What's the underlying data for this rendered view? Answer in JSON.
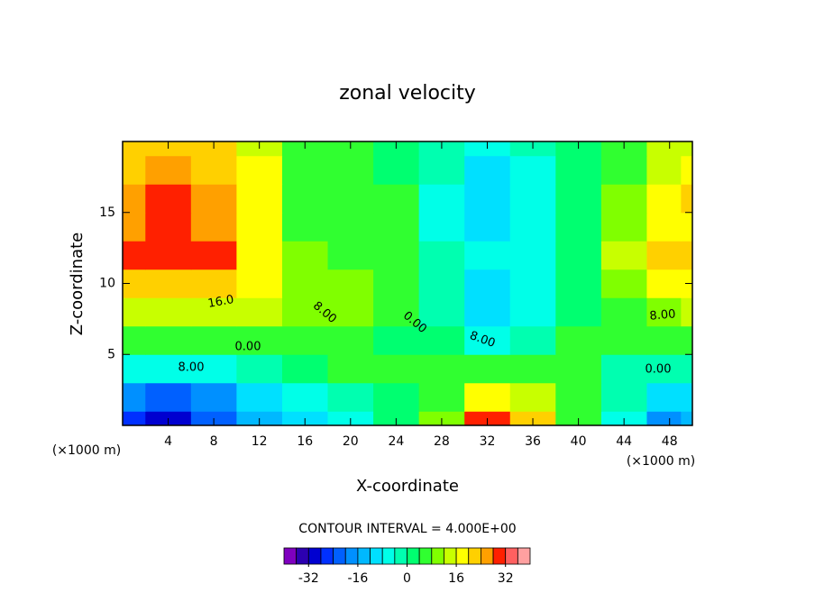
{
  "chart_data": {
    "type": "contour",
    "title": "zonal velocity",
    "xlabel": "X-coordinate",
    "ylabel": "Z-coordinate",
    "x_unit_label": "(×1000 m)",
    "y_unit_label": "(×1000 m)",
    "contour_interval_text": "CONTOUR INTERVAL = 4.000E+00",
    "xlim": [
      0,
      50
    ],
    "ylim": [
      0,
      20
    ],
    "xticks": [
      4,
      8,
      12,
      16,
      20,
      24,
      28,
      32,
      36,
      40,
      44,
      48
    ],
    "yticks": [
      5,
      10,
      15
    ],
    "x": [
      0,
      4,
      8,
      12,
      16,
      20,
      24,
      28,
      32,
      36,
      40,
      44,
      48,
      50
    ],
    "y": [
      0,
      2,
      4,
      6,
      8,
      10,
      12,
      14,
      16,
      18,
      20
    ],
    "z": [
      [
        -28,
        -30,
        -24,
        -14,
        -10,
        -8,
        0,
        8,
        30,
        22,
        4,
        -6,
        -20,
        -16
      ],
      [
        -20,
        -22,
        -18,
        -10,
        -6,
        -2,
        2,
        6,
        16,
        14,
        4,
        -4,
        -12,
        -10
      ],
      [
        -6,
        -8,
        -6,
        -4,
        2,
        4,
        4,
        4,
        4,
        6,
        4,
        -2,
        -4,
        -2
      ],
      [
        6,
        6,
        4,
        4,
        6,
        6,
        2,
        0,
        -6,
        -2,
        4,
        4,
        4,
        6
      ],
      [
        14,
        14,
        12,
        12,
        8,
        8,
        4,
        -2,
        -10,
        -6,
        2,
        6,
        10,
        12
      ],
      [
        20,
        22,
        20,
        16,
        10,
        8,
        6,
        -4,
        -10,
        -8,
        2,
        10,
        16,
        18
      ],
      [
        28,
        30,
        28,
        18,
        8,
        6,
        4,
        -4,
        -8,
        -8,
        2,
        12,
        20,
        22
      ],
      [
        26,
        28,
        26,
        16,
        6,
        6,
        4,
        -6,
        -10,
        -8,
        2,
        10,
        18,
        18
      ],
      [
        26,
        30,
        24,
        16,
        6,
        6,
        4,
        -6,
        -10,
        -8,
        0,
        8,
        16,
        20
      ],
      [
        22,
        24,
        22,
        16,
        6,
        6,
        2,
        -4,
        -10,
        -6,
        0,
        6,
        14,
        16
      ],
      [
        20,
        22,
        22,
        14,
        6,
        6,
        2,
        -2,
        -8,
        -4,
        0,
        6,
        12,
        14
      ]
    ],
    "contour_labels": [
      "16.0",
      "8.00",
      "0.00",
      "8.00",
      "0.00",
      "8.00",
      "8.00",
      "0.00"
    ],
    "colorbar": {
      "lim": [
        -40,
        40
      ],
      "colors": [
        "#7f00bf",
        "#2c00b0",
        "#0000d0",
        "#0030ff",
        "#0060ff",
        "#0090ff",
        "#00b8ff",
        "#00e0ff",
        "#00ffe8",
        "#00ffb0",
        "#00ff70",
        "#30ff30",
        "#80ff00",
        "#c8ff00",
        "#ffff00",
        "#ffd000",
        "#ffa000",
        "#ff2000",
        "#ff6060",
        "#ffa0a0"
      ],
      "ticks": [
        -32,
        -16,
        0,
        16,
        32
      ]
    }
  }
}
